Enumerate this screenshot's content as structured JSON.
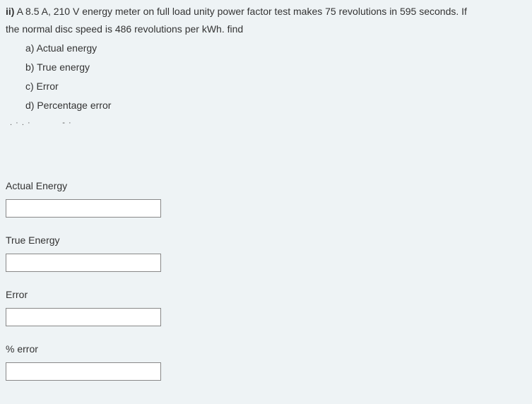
{
  "question": {
    "prefix": "ii)",
    "text_line1": " A 8.5 A, 210 V  energy meter on full load unity power factor test makes 75 revolutions in 595 seconds. If",
    "text_line2": "the normal disc speed is 486 revolutions per kWh. find",
    "items": {
      "a": "a) Actual energy",
      "b": "b) True energy",
      "c": "c)  Error",
      "d": "d) Percentage error"
    }
  },
  "answers": {
    "actual_energy": {
      "label": "Actual Energy",
      "value": ""
    },
    "true_energy": {
      "label": "True Energy",
      "value": ""
    },
    "error": {
      "label": "Error",
      "value": ""
    },
    "pct_error": {
      "label": "% error",
      "value": ""
    }
  },
  "colors": {
    "background": "#eef3f5",
    "text": "#333333",
    "input_border": "#888888",
    "input_bg": "#ffffff"
  },
  "typography": {
    "font_family": "Segoe UI",
    "base_size_pt": 11
  }
}
